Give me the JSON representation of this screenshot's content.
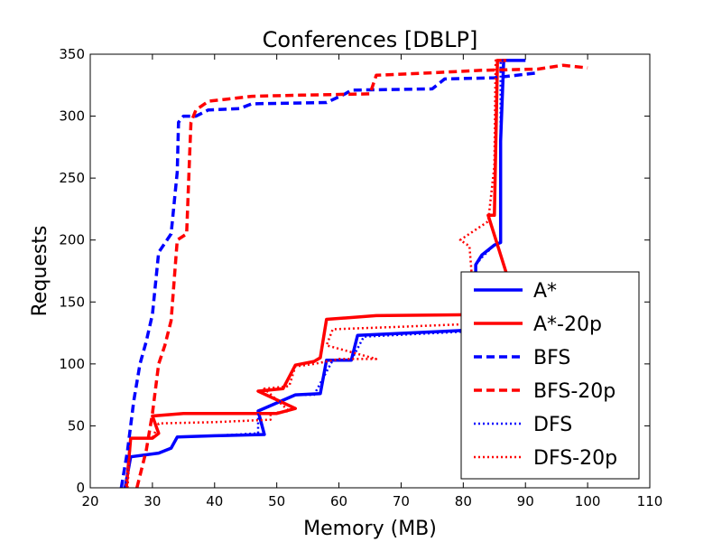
{
  "chart_data": {
    "type": "line",
    "title": "Conferences [DBLP]",
    "xlabel": "Memory (MB)",
    "ylabel": "Requests",
    "xlim": [
      20,
      110
    ],
    "ylim": [
      0,
      350
    ],
    "xticks": [
      20,
      30,
      40,
      50,
      60,
      70,
      80,
      90,
      100,
      110
    ],
    "yticks": [
      0,
      50,
      100,
      150,
      200,
      250,
      300,
      350
    ],
    "grid": false,
    "legend": "lower-right",
    "series": [
      {
        "name": "A*",
        "color": "#0000ff",
        "style": "solid",
        "points": [
          [
            25.6,
            0
          ],
          [
            26.5,
            25
          ],
          [
            31,
            28
          ],
          [
            33,
            32
          ],
          [
            34,
            41
          ],
          [
            40,
            42
          ],
          [
            48,
            43
          ],
          [
            47,
            62
          ],
          [
            53,
            75
          ],
          [
            57,
            76
          ],
          [
            58,
            103
          ],
          [
            62,
            103
          ],
          [
            63,
            123
          ],
          [
            80,
            127
          ],
          [
            82,
            128
          ],
          [
            82,
            180
          ],
          [
            83,
            188
          ],
          [
            85,
            196
          ],
          [
            86,
            198
          ],
          [
            86,
            280
          ],
          [
            86.5,
            345
          ],
          [
            90,
            345
          ]
        ]
      },
      {
        "name": "A*-20p",
        "color": "#ff0000",
        "style": "solid",
        "points": [
          [
            25.8,
            0
          ],
          [
            26.5,
            40
          ],
          [
            30,
            40
          ],
          [
            31,
            44
          ],
          [
            30,
            58
          ],
          [
            35,
            60
          ],
          [
            50,
            60
          ],
          [
            53,
            64
          ],
          [
            47,
            78
          ],
          [
            51,
            80
          ],
          [
            53,
            99
          ],
          [
            56,
            102
          ],
          [
            57,
            105
          ],
          [
            58,
            136
          ],
          [
            66,
            139
          ],
          [
            86,
            140
          ],
          [
            87,
            172
          ],
          [
            84,
            220
          ],
          [
            85,
            220
          ],
          [
            85.5,
            345
          ],
          [
            87,
            345
          ]
        ]
      },
      {
        "name": "BFS",
        "color": "#0000ff",
        "style": "dashed",
        "points": [
          [
            25,
            0
          ],
          [
            26,
            30
          ],
          [
            27,
            70
          ],
          [
            28,
            100
          ],
          [
            29,
            118
          ],
          [
            30,
            140
          ],
          [
            31,
            190
          ],
          [
            33,
            205
          ],
          [
            34,
            255
          ],
          [
            34.2,
            295
          ],
          [
            35,
            300
          ],
          [
            37,
            300
          ],
          [
            39,
            305
          ],
          [
            44,
            306
          ],
          [
            46,
            310
          ],
          [
            58,
            311
          ],
          [
            61,
            318
          ],
          [
            62,
            321
          ],
          [
            75,
            322
          ],
          [
            77,
            330
          ],
          [
            85,
            331
          ],
          [
            92,
            335
          ]
        ]
      },
      {
        "name": "BFS-20p",
        "color": "#ff0000",
        "style": "dashed",
        "points": [
          [
            27.5,
            0
          ],
          [
            29,
            30
          ],
          [
            30,
            60
          ],
          [
            31,
            100
          ],
          [
            32,
            115
          ],
          [
            33,
            135
          ],
          [
            34,
            200
          ],
          [
            35.5,
            205
          ],
          [
            36,
            270
          ],
          [
            36.2,
            295
          ],
          [
            37,
            305
          ],
          [
            39,
            312
          ],
          [
            46,
            316
          ],
          [
            54,
            317
          ],
          [
            65,
            318
          ],
          [
            66,
            333
          ],
          [
            75,
            335
          ],
          [
            83,
            337
          ],
          [
            92,
            338
          ],
          [
            96,
            341
          ],
          [
            100,
            339
          ]
        ]
      },
      {
        "name": "DFS",
        "color": "#0000ff",
        "style": "dotted",
        "points": [
          [
            25.5,
            0
          ],
          [
            26.5,
            25
          ],
          [
            31,
            28
          ],
          [
            33,
            32
          ],
          [
            34,
            41
          ],
          [
            40,
            42
          ],
          [
            47,
            44
          ],
          [
            47,
            62
          ],
          [
            53,
            75
          ],
          [
            56,
            75
          ],
          [
            59,
            103
          ],
          [
            62,
            103
          ],
          [
            64,
            122
          ],
          [
            80,
            126
          ],
          [
            82,
            128
          ],
          [
            82,
            180
          ],
          [
            83,
            186
          ],
          [
            85,
            196
          ],
          [
            86,
            198
          ],
          [
            86,
            345
          ],
          [
            90,
            345
          ]
        ]
      },
      {
        "name": "DFS-20p",
        "color": "#ff0000",
        "style": "dotted",
        "points": [
          [
            26,
            0
          ],
          [
            26.5,
            40
          ],
          [
            30,
            40
          ],
          [
            31,
            52
          ],
          [
            40,
            53
          ],
          [
            49,
            55
          ],
          [
            49,
            60
          ],
          [
            52,
            62
          ],
          [
            48,
            80
          ],
          [
            52,
            82
          ],
          [
            53,
            98
          ],
          [
            56,
            100
          ],
          [
            60,
            104
          ],
          [
            66,
            104
          ],
          [
            58,
            115
          ],
          [
            59,
            128
          ],
          [
            70,
            130
          ],
          [
            80,
            132
          ],
          [
            82,
            132
          ],
          [
            81,
            195
          ],
          [
            79.5,
            200
          ],
          [
            84,
            215
          ],
          [
            85,
            260
          ],
          [
            85.2,
            345
          ],
          [
            87,
            345
          ]
        ]
      }
    ]
  }
}
